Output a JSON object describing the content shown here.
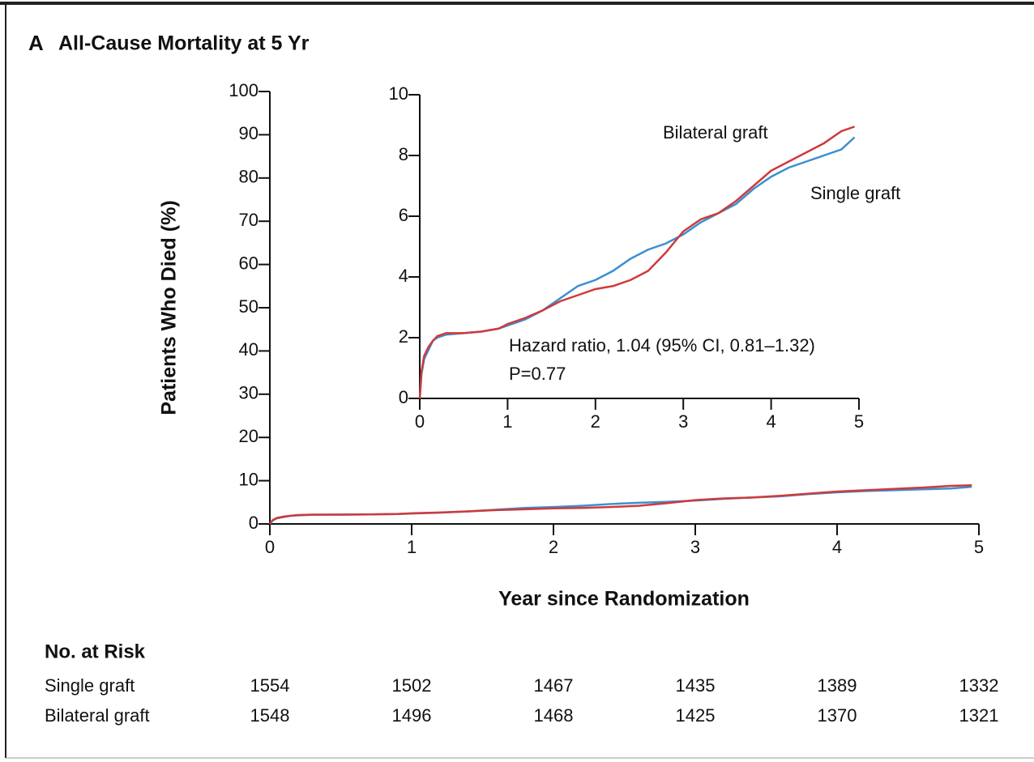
{
  "chart_data": [
    {
      "type": "line",
      "panel": "A",
      "title": "All-Cause Mortality at 5 Yr",
      "ylabel": "Patients Who Died (%)",
      "xlabel": "Year since Randomization",
      "xlim": [
        0,
        5
      ],
      "xticks": [
        0,
        1,
        2,
        3,
        4,
        5
      ],
      "ylim": [
        0,
        100
      ],
      "yticks": [
        0,
        10,
        20,
        30,
        40,
        50,
        60,
        70,
        80,
        90,
        100
      ],
      "x": [
        0,
        0.02,
        0.05,
        0.1,
        0.15,
        0.2,
        0.3,
        0.5,
        0.7,
        0.9,
        1.0,
        1.2,
        1.4,
        1.6,
        1.8,
        2.0,
        2.2,
        2.4,
        2.6,
        2.8,
        3.0,
        3.2,
        3.4,
        3.6,
        3.8,
        4.0,
        4.2,
        4.4,
        4.6,
        4.8,
        4.95
      ],
      "series": [
        {
          "color": "#3b8fd2",
          "values": [
            0,
            0.8,
            1.3,
            1.6,
            1.9,
            2.0,
            2.1,
            2.15,
            2.2,
            2.3,
            2.4,
            2.6,
            2.9,
            3.3,
            3.7,
            3.9,
            4.2,
            4.6,
            4.9,
            5.1,
            5.4,
            5.8,
            6.1,
            6.4,
            6.9,
            7.3,
            7.6,
            7.8,
            8.0,
            8.2,
            8.6
          ]
        },
        {
          "color": "#cf3a3c",
          "values": [
            0,
            0.9,
            1.4,
            1.7,
            1.9,
            2.05,
            2.15,
            2.15,
            2.2,
            2.3,
            2.45,
            2.65,
            2.9,
            3.2,
            3.4,
            3.6,
            3.7,
            3.9,
            4.2,
            4.8,
            5.5,
            5.9,
            6.1,
            6.5,
            7.0,
            7.5,
            7.8,
            8.1,
            8.4,
            8.8,
            8.95
          ]
        }
      ]
    },
    {
      "type": "line",
      "xlim": [
        0,
        5
      ],
      "xticks": [
        0,
        1,
        2,
        3,
        4,
        5
      ],
      "ylim": [
        0,
        10
      ],
      "yticks": [
        0,
        2,
        4,
        6,
        8,
        10
      ],
      "annotations": [
        "Hazard ratio, 1.04 (95% CI, 0.81–1.32)",
        "P=0.77"
      ],
      "x": [
        0,
        0.02,
        0.05,
        0.1,
        0.15,
        0.2,
        0.3,
        0.5,
        0.7,
        0.9,
        1.0,
        1.2,
        1.4,
        1.6,
        1.8,
        2.0,
        2.2,
        2.4,
        2.6,
        2.8,
        3.0,
        3.2,
        3.4,
        3.6,
        3.8,
        4.0,
        4.2,
        4.4,
        4.6,
        4.8,
        4.95
      ],
      "series": [
        {
          "name": "Single graft",
          "color": "#3b8fd2",
          "values": [
            0,
            0.8,
            1.3,
            1.6,
            1.9,
            2.0,
            2.1,
            2.15,
            2.2,
            2.3,
            2.4,
            2.6,
            2.9,
            3.3,
            3.7,
            3.9,
            4.2,
            4.6,
            4.9,
            5.1,
            5.4,
            5.8,
            6.1,
            6.4,
            6.9,
            7.3,
            7.6,
            7.8,
            8.0,
            8.2,
            8.6
          ]
        },
        {
          "name": "Bilateral graft",
          "color": "#cf3a3c",
          "values": [
            0,
            0.9,
            1.4,
            1.7,
            1.9,
            2.05,
            2.15,
            2.15,
            2.2,
            2.3,
            2.45,
            2.65,
            2.9,
            3.2,
            3.4,
            3.6,
            3.7,
            3.9,
            4.2,
            4.8,
            5.5,
            5.9,
            6.1,
            6.5,
            7.0,
            7.5,
            7.8,
            8.1,
            8.4,
            8.8,
            8.95
          ]
        }
      ]
    }
  ],
  "risk_table": {
    "title": "No. at Risk",
    "rows": [
      {
        "name": "Single graft",
        "values": [
          1554,
          1502,
          1467,
          1435,
          1389,
          1332
        ]
      },
      {
        "name": "Bilateral graft",
        "values": [
          1548,
          1496,
          1468,
          1425,
          1370,
          1321
        ]
      }
    ]
  }
}
